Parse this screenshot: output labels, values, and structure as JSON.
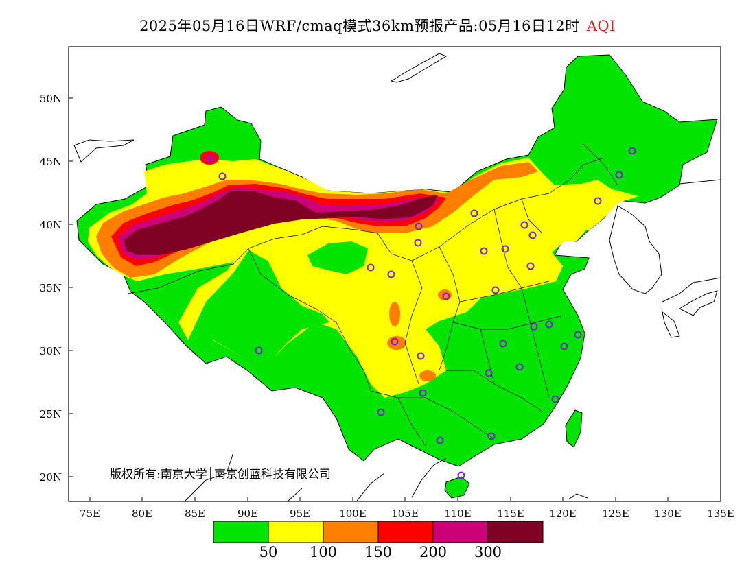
{
  "title": {
    "main": "2025年05月16日WRF/cmaq模式36km预报产品:05月16日12时",
    "variable": "AQI"
  },
  "axes": {
    "lat_labels": [
      "50N",
      "45N",
      "40N",
      "35N",
      "30N",
      "25N",
      "20N"
    ],
    "lon_labels": [
      "75E",
      "80E",
      "85E",
      "90E",
      "95E",
      "100E",
      "105E",
      "110E",
      "115E",
      "120E",
      "125E",
      "130E",
      "135E"
    ],
    "lat_range": [
      18,
      54
    ],
    "lon_range": [
      73,
      135
    ]
  },
  "copyright": "版权所有:南京大学│南京创蓝科技有限公司",
  "legend": {
    "colors": [
      "#00e400",
      "#ffff00",
      "#ff7e00",
      "#ff0000",
      "#cc0077",
      "#7e0023"
    ],
    "tick_labels": [
      "50",
      "100",
      "150",
      "200",
      "300"
    ]
  },
  "colors": {
    "good": "#00e400",
    "moderate": "#ffff00",
    "usg": "#ff7e00",
    "unhealthy": "#ff0000",
    "very_unhealthy": "#cc0077",
    "hazardous": "#7e0023",
    "station_marker": "#7a22cc"
  }
}
